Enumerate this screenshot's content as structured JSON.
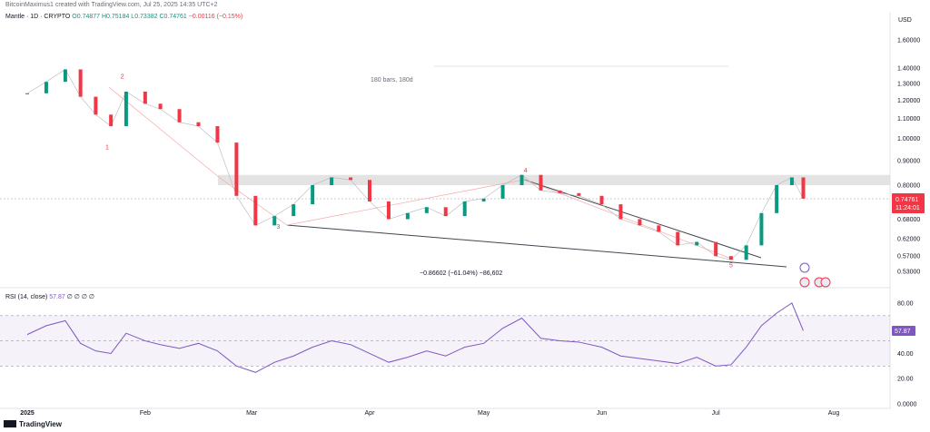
{
  "header": {
    "credit": "BitcoinMaximus1 created with TradingView.com, Jul 25, 2025 14:35 UTC+2"
  },
  "symbol": {
    "name": "Mantle · 1D · CRYPTO",
    "open": "O0.74877",
    "high": "H0.75184",
    "low": "L0.73382",
    "close": "C0.74761",
    "change": "−0.00116 (−0.15%)"
  },
  "price_axis": {
    "currency": "USD",
    "current_price": "0.74761",
    "countdown": "11:24:01"
  },
  "rsi": {
    "label": "RSI (14, close)",
    "value": "57.87",
    "suffix": "∅ ∅ ∅ ∅",
    "current_badge": "57.87"
  },
  "annotations": {
    "range_label": "180 bars, 180d",
    "measure_label": "−0.86602 (−61.04%) −86,602"
  },
  "footer": {
    "brand": "TradingView"
  },
  "colors": {
    "up": "#089981",
    "down": "#f23645",
    "rsi_line": "#7e57c2",
    "trendline": "#434651",
    "resistance_band": "#dcdcdc"
  },
  "chart_data": [
    {
      "type": "line",
      "title": "Mantle · 1D · CRYPTO",
      "x_ticks": [
        "2025",
        "Feb",
        "Mar",
        "Apr",
        "May",
        "Jun",
        "Jul",
        "Aug"
      ],
      "y_ticks": [
        "1.60000",
        "1.40000",
        "1.30000",
        "1.20000",
        "1.10000",
        "1.00000",
        "0.90000",
        "0.80000",
        "0.68000",
        "0.62000",
        "0.57000",
        "0.53000"
      ],
      "ylim": [
        0.53,
        1.6
      ],
      "scale": "log",
      "series": [
        {
          "name": "",
          "x": [
            "2025-01-01",
            "2025-01-06",
            "2025-01-11",
            "2025-01-15",
            "2025-01-19",
            "2025-01-23",
            "2025-01-27",
            "2025-02-01",
            "2025-02-05",
            "2025-02-10",
            "2025-02-15",
            "2025-02-20",
            "2025-02-25",
            "2025-03-02",
            "2025-03-07",
            "2025-03-12",
            "2025-03-17",
            "2025-03-22",
            "2025-03-27",
            "2025-04-01",
            "2025-04-06",
            "2025-04-11",
            "2025-04-16",
            "2025-04-21",
            "2025-04-26",
            "2025-05-01",
            "2025-05-06",
            "2025-05-11",
            "2025-05-16",
            "2025-05-21",
            "2025-05-26",
            "2025-06-01",
            "2025-06-06",
            "2025-06-11",
            "2025-06-16",
            "2025-06-21",
            "2025-06-26",
            "2025-07-01",
            "2025-07-05",
            "2025-07-09",
            "2025-07-13",
            "2025-07-17",
            "2025-07-21",
            "2025-07-24"
          ],
          "y": [
            1.24,
            1.31,
            1.39,
            1.22,
            1.12,
            1.06,
            1.25,
            1.18,
            1.15,
            1.08,
            1.06,
            0.98,
            0.76,
            0.66,
            0.69,
            0.73,
            0.8,
            0.83,
            0.82,
            0.74,
            0.68,
            0.7,
            0.72,
            0.69,
            0.74,
            0.75,
            0.8,
            0.84,
            0.78,
            0.77,
            0.76,
            0.73,
            0.68,
            0.66,
            0.64,
            0.6,
            0.61,
            0.57,
            0.56,
            0.6,
            0.7,
            0.8,
            0.83,
            0.75
          ]
        }
      ],
      "levels": {
        "resistance_zone": [
          0.8,
          0.84
        ],
        "wave_labels": [
          {
            "label": "1",
            "x": "2025-01-22",
            "y": 0.95
          },
          {
            "label": "2",
            "x": "2025-01-26",
            "y": 1.33
          },
          {
            "label": "3",
            "x": "2025-03-08",
            "y": 0.65
          },
          {
            "label": "4",
            "x": "2025-05-12",
            "y": 0.85
          },
          {
            "label": "5",
            "x": "2025-07-05",
            "y": 0.54
          }
        ]
      }
    },
    {
      "type": "line",
      "title": "RSI (14, close)",
      "y_ticks": [
        "80.00",
        "60.00",
        "40.00",
        "20.00",
        "0.0000"
      ],
      "ylim": [
        0,
        90
      ],
      "bands": [
        30,
        70
      ],
      "series": [
        {
          "name": "",
          "x": [
            "2025-01-01",
            "2025-01-06",
            "2025-01-11",
            "2025-01-15",
            "2025-01-19",
            "2025-01-23",
            "2025-01-27",
            "2025-02-01",
            "2025-02-05",
            "2025-02-10",
            "2025-02-15",
            "2025-02-20",
            "2025-02-25",
            "2025-03-02",
            "2025-03-07",
            "2025-03-12",
            "2025-03-17",
            "2025-03-22",
            "2025-03-27",
            "2025-04-01",
            "2025-04-06",
            "2025-04-11",
            "2025-04-16",
            "2025-04-21",
            "2025-04-26",
            "2025-05-01",
            "2025-05-06",
            "2025-05-11",
            "2025-05-16",
            "2025-05-21",
            "2025-05-26",
            "2025-06-01",
            "2025-06-06",
            "2025-06-11",
            "2025-06-16",
            "2025-06-21",
            "2025-06-26",
            "2025-07-01",
            "2025-07-05",
            "2025-07-09",
            "2025-07-13",
            "2025-07-17",
            "2025-07-21",
            "2025-07-24"
          ],
          "y": [
            55,
            62,
            66,
            48,
            42,
            40,
            56,
            50,
            47,
            44,
            48,
            42,
            30,
            25,
            33,
            38,
            45,
            50,
            47,
            40,
            33,
            37,
            42,
            38,
            45,
            48,
            60,
            68,
            52,
            50,
            49,
            45,
            38,
            36,
            34,
            32,
            37,
            30,
            31,
            45,
            62,
            72,
            80,
            58
          ]
        }
      ]
    }
  ]
}
